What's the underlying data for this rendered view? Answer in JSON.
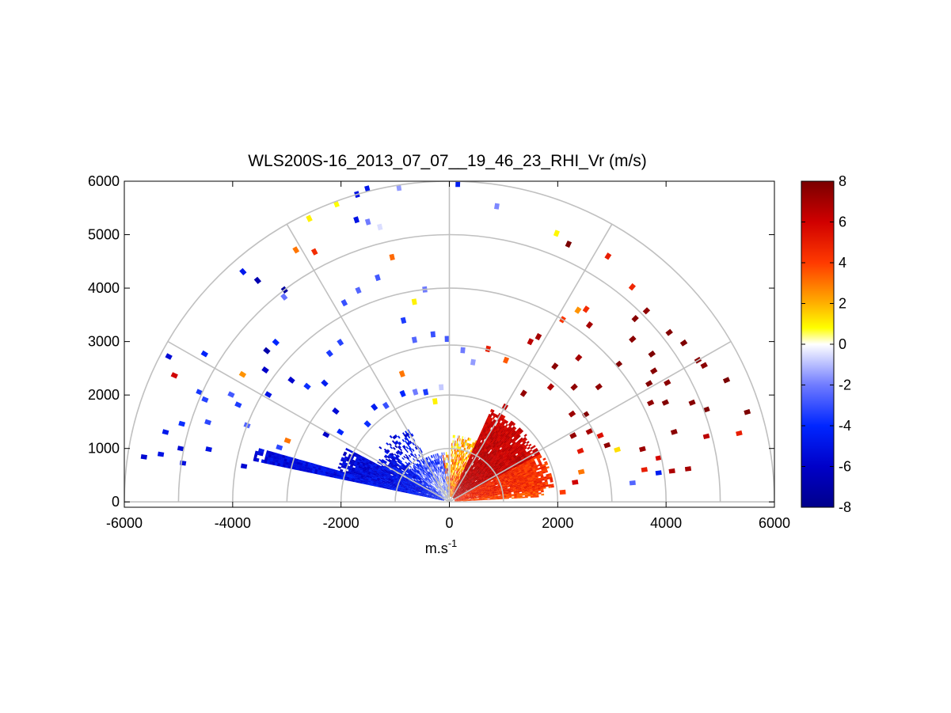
{
  "chart_data": {
    "type": "heatmap",
    "subtype": "polar-rhi-scan",
    "title": "WLS200S-16_2013_07_07__19_46_23_RHI_Vr (m/s)",
    "xlabel": "m.s",
    "xlabel_superscript": "-1",
    "ylabel": "",
    "xlim": [
      -6000,
      6000
    ],
    "ylim": [
      -100,
      6000
    ],
    "x_ticks": [
      -6000,
      -4000,
      -2000,
      0,
      2000,
      4000,
      6000
    ],
    "y_ticks": [
      0,
      1000,
      2000,
      3000,
      4000,
      5000,
      6000
    ],
    "polar_grid": {
      "range_rings": [
        1000,
        2000,
        3000,
        4000,
        5000,
        6000
      ],
      "spokes_deg": [
        0,
        30,
        60,
        90,
        120,
        150,
        180
      ],
      "color": "#c0c0c0"
    },
    "colorbar": {
      "min": -8,
      "max": 8,
      "ticks": [
        8,
        6,
        4,
        2,
        0,
        -2,
        -4,
        -6,
        -8
      ],
      "placement": "right",
      "colormap": [
        {
          "v": -8,
          "c": "#00008b"
        },
        {
          "v": -6,
          "c": "#0000c8"
        },
        {
          "v": -4,
          "c": "#0026ff"
        },
        {
          "v": -2,
          "c": "#6f7bff"
        },
        {
          "v": 0,
          "c": "#ffffff"
        },
        {
          "v": 0.8,
          "c": "#ffff00"
        },
        {
          "v": 2,
          "c": "#ffb000"
        },
        {
          "v": 4,
          "c": "#ff3a00"
        },
        {
          "v": 6,
          "c": "#d00000"
        },
        {
          "v": 8,
          "c": "#7a0000"
        }
      ]
    },
    "wedges": [
      {
        "name": "negative-low-elevation-region",
        "az0": 164,
        "az1": 168,
        "r0": 100,
        "r1": 3700,
        "v0": -4.5,
        "v1": -5.5,
        "jitter": 0.1,
        "density": 1.0
      },
      {
        "name": "negative-low-elevation-region",
        "az0": 152,
        "az1": 164,
        "r0": 100,
        "r1": 2150,
        "v0": -4.5,
        "v1": -5.8,
        "jitter": 0.12,
        "density": 0.97
      },
      {
        "name": "negative-low-elevation-region",
        "az0": 140,
        "az1": 152,
        "r0": 120,
        "r1": 1500,
        "v0": -4.0,
        "v1": -5.5,
        "jitter": 0.15,
        "density": 0.85
      },
      {
        "name": "negative-sparse-region",
        "az0": 118,
        "az1": 142,
        "r0": 700,
        "r1": 1650,
        "v0": -4.5,
        "v1": -6.0,
        "jitter": 0.2,
        "density": 0.38
      },
      {
        "name": "near-vertical-negative-region",
        "az0": 96,
        "az1": 140,
        "r0": 80,
        "r1": 900,
        "v0": -1.2,
        "v1": -3.0,
        "jitter": 0.3,
        "density": 0.9
      },
      {
        "name": "near-vertical-mixed-region",
        "az0": 90,
        "az1": 98,
        "r0": 80,
        "r1": 900,
        "v0": 0.5,
        "v1": 1.5,
        "jitter": 0.5,
        "density": 0.8
      },
      {
        "name": "positive-high-angle-region",
        "az0": 66,
        "az1": 88,
        "r0": 100,
        "r1": 1250,
        "v0": 3.5,
        "v1": 1.0,
        "jitter": 0.3,
        "density": 0.9
      },
      {
        "name": "positive-main-region",
        "az0": 28,
        "az1": 66,
        "r0": 100,
        "r1": 1900,
        "v0": 6.8,
        "v1": 6.0,
        "jitter": 0.08,
        "density": 0.98
      },
      {
        "name": "positive-low-elevation-region",
        "az0": 8,
        "az1": 28,
        "r0": 100,
        "r1": 1950,
        "v0": 5.0,
        "v1": 4.2,
        "jitter": 0.1,
        "density": 0.98
      },
      {
        "name": "positive-low-elevation-region",
        "az0": 3,
        "az1": 8,
        "r0": 100,
        "r1": 1750,
        "v0": 4.0,
        "v1": 3.6,
        "jitter": 0.1,
        "density": 0.95
      }
    ],
    "sparse_points": [
      {
        "az": 171.5,
        "r": 5700,
        "v": -5.6
      },
      {
        "az": 170.5,
        "r": 5400,
        "v": -5.0
      },
      {
        "az": 168.6,
        "r": 5060,
        "v": -5.5
      },
      {
        "az": 171.6,
        "r": 4970,
        "v": -5.2
      },
      {
        "az": 167.5,
        "r": 4550,
        "v": -5.0
      },
      {
        "az": 170,
        "r": 3850,
        "v": -5.6
      },
      {
        "az": 166,
        "r": 5400,
        "v": -4.7
      },
      {
        "az": 163.5,
        "r": 5150,
        "v": -3.8
      },
      {
        "az": 161.5,
        "r": 4700,
        "v": -3.2
      },
      {
        "az": 157,
        "r": 4900,
        "v": -3.3
      },
      {
        "az": 156,
        "r": 5050,
        "v": -3.6
      },
      {
        "az": 155,
        "r": 4300,
        "v": -3.5
      },
      {
        "az": 153.5,
        "r": 4500,
        "v": -2.8
      },
      {
        "az": 155,
        "r": 5600,
        "v": 6.0
      },
      {
        "az": 152.3,
        "r": 5850,
        "v": -5.5
      },
      {
        "az": 148.5,
        "r": 5300,
        "v": -4.2
      },
      {
        "az": 149,
        "r": 3900,
        "v": -5.0
      },
      {
        "az": 148,
        "r": 4500,
        "v": 2.5
      },
      {
        "az": 144,
        "r": 4200,
        "v": -6.0
      },
      {
        "az": 140,
        "r": 4400,
        "v": -7.0
      },
      {
        "az": 137,
        "r": 4380,
        "v": -4.0
      },
      {
        "az": 131.5,
        "r": 5750,
        "v": -4.7
      },
      {
        "az": 130.5,
        "r": 5450,
        "v": -6.8
      },
      {
        "az": 127.5,
        "r": 5000,
        "v": -7.3
      },
      {
        "az": 128.5,
        "r": 4900,
        "v": -2.2
      },
      {
        "az": 121,
        "r": 5500,
        "v": 3.0
      },
      {
        "az": 118,
        "r": 5300,
        "v": 4.5
      },
      {
        "az": 116,
        "r": 5900,
        "v": 1.0
      },
      {
        "az": 106.5,
        "r": 6000,
        "v": -5.0
      },
      {
        "az": 104.5,
        "r": 6050,
        "v": -4.8
      },
      {
        "az": 110.5,
        "r": 5950,
        "v": 0.8
      },
      {
        "az": 108,
        "r": 5550,
        "v": -5.0
      },
      {
        "az": 106,
        "r": 5450,
        "v": -2.0
      },
      {
        "az": 104,
        "r": 5300,
        "v": -0.5
      },
      {
        "az": 99,
        "r": 5950,
        "v": -1.5
      },
      {
        "az": 88.5,
        "r": 5950,
        "v": -4.5
      },
      {
        "az": 81,
        "r": 5600,
        "v": -1.8
      },
      {
        "az": 68.5,
        "r": 5400,
        "v": 0.9
      },
      {
        "az": 65.5,
        "r": 5300,
        "v": 8.0
      },
      {
        "az": 57.5,
        "r": 5450,
        "v": 5.0
      },
      {
        "az": 50,
        "r": 5250,
        "v": 4.7
      },
      {
        "az": 44.5,
        "r": 5100,
        "v": 7.5
      },
      {
        "az": 38,
        "r": 5150,
        "v": 7.8
      },
      {
        "az": 34.5,
        "r": 5250,
        "v": 7.9
      },
      {
        "az": 30,
        "r": 5300,
        "v": 7.7
      },
      {
        "az": 28.5,
        "r": 5350,
        "v": 7.6
      },
      {
        "az": 24,
        "r": 5600,
        "v": 8.0
      },
      {
        "az": 17,
        "r": 5750,
        "v": 7.9
      },
      {
        "az": 13.5,
        "r": 5500,
        "v": 5.0
      },
      {
        "az": 8,
        "r": 4450,
        "v": 7.0
      },
      {
        "az": 142,
        "r": 3700,
        "v": -5.8
      },
      {
        "az": 140.5,
        "r": 3400,
        "v": -3.8
      },
      {
        "az": 136,
        "r": 3200,
        "v": -4.5
      },
      {
        "az": 128.5,
        "r": 3550,
        "v": -3.5
      },
      {
        "az": 124,
        "r": 3600,
        "v": -3.3
      },
      {
        "az": 117.5,
        "r": 4200,
        "v": -3.0
      },
      {
        "az": 113,
        "r": 4300,
        "v": -2.5
      },
      {
        "az": 107.5,
        "r": 4400,
        "v": -2.8
      },
      {
        "az": 103,
        "r": 4700,
        "v": 3.2
      },
      {
        "az": 96.5,
        "r": 4000,
        "v": -2.0
      },
      {
        "az": 99.8,
        "r": 3800,
        "v": 1.0
      },
      {
        "az": 104,
        "r": 3500,
        "v": -3.5
      },
      {
        "az": 102,
        "r": 3100,
        "v": -2.5
      },
      {
        "az": 95.5,
        "r": 3150,
        "v": -3.0
      },
      {
        "az": 90.8,
        "r": 3050,
        "v": -2.8
      },
      {
        "az": 85,
        "r": 2850,
        "v": -2.0
      },
      {
        "az": 80.5,
        "r": 2650,
        "v": -1.5
      },
      {
        "az": 76,
        "r": 2950,
        "v": 5.0
      },
      {
        "az": 68.5,
        "r": 2850,
        "v": 3.5
      },
      {
        "az": 62,
        "r": 3500,
        "v": 7.0
      },
      {
        "az": 63.5,
        "r": 3350,
        "v": 6.5
      },
      {
        "az": 58.5,
        "r": 4000,
        "v": 4.2
      },
      {
        "az": 56.5,
        "r": 4300,
        "v": 2.5
      },
      {
        "az": 55,
        "r": 4400,
        "v": 4.5
      },
      {
        "az": 52,
        "r": 4200,
        "v": 7.0
      },
      {
        "az": 48.5,
        "r": 3600,
        "v": 7.0
      },
      {
        "az": 45,
        "r": 4850,
        "v": 7.7
      },
      {
        "az": 42,
        "r": 4550,
        "v": 7.6
      },
      {
        "az": 39.5,
        "r": 4050,
        "v": 7.8
      },
      {
        "az": 38,
        "r": 3500,
        "v": 7.5
      },
      {
        "az": 36.5,
        "r": 4650,
        "v": 7.9
      },
      {
        "az": 33,
        "r": 4500,
        "v": 7.7
      },
      {
        "az": 31,
        "r": 4300,
        "v": 7.8
      },
      {
        "az": 29,
        "r": 4600,
        "v": 7.6
      },
      {
        "az": 26.5,
        "r": 4150,
        "v": 7.5
      },
      {
        "az": 25,
        "r": 4400,
        "v": 7.8
      },
      {
        "az": 22.5,
        "r": 4850,
        "v": 7.7
      },
      {
        "az": 20,
        "r": 5050,
        "v": 7.9
      },
      {
        "az": 17.5,
        "r": 4350,
        "v": 7.6
      },
      {
        "az": 14.5,
        "r": 4900,
        "v": 6.5
      },
      {
        "az": 15.5,
        "r": 3700,
        "v": 7.2
      },
      {
        "az": 12,
        "r": 3950,
        "v": 5.8
      },
      {
        "az": 9.5,
        "r": 3650,
        "v": 5.0
      },
      {
        "az": 8,
        "r": 3900,
        "v": -4.5
      },
      {
        "az": 6,
        "r": 3400,
        "v": -2.5
      },
      {
        "az": 8,
        "r": 4150,
        "v": 6.8
      },
      {
        "az": 17.5,
        "r": 3250,
        "v": 1.3
      },
      {
        "az": 20,
        "r": 3100,
        "v": 7.5
      },
      {
        "az": 24,
        "r": 3050,
        "v": 5.5
      },
      {
        "az": 27,
        "r": 2900,
        "v": 7.0
      },
      {
        "az": 28.5,
        "r": 2600,
        "v": 7.4
      },
      {
        "az": 33,
        "r": 3000,
        "v": 7.8
      },
      {
        "az": 36,
        "r": 2800,
        "v": 7.2
      },
      {
        "az": 43,
        "r": 3150,
        "v": 7.5
      },
      {
        "az": 49,
        "r": 2850,
        "v": 6.8
      },
      {
        "az": 52.5,
        "r": 3200,
        "v": 7.6
      },
      {
        "az": 56,
        "r": 2450,
        "v": 7.4
      },
      {
        "az": 60,
        "r": 2050,
        "v": 6.5
      },
      {
        "az": 64,
        "r": 1700,
        "v": 5.5
      },
      {
        "az": 21.5,
        "r": 2600,
        "v": 5.2
      },
      {
        "az": 13,
        "r": 2500,
        "v": 3.0
      },
      {
        "az": 9,
        "r": 2350,
        "v": 6.0
      },
      {
        "az": 5,
        "r": 2100,
        "v": 4.0
      },
      {
        "az": 151,
        "r": 2600,
        "v": -6.0
      },
      {
        "az": 147,
        "r": 2400,
        "v": -4.0
      },
      {
        "az": 141,
        "r": 2700,
        "v": -5.5
      },
      {
        "az": 136,
        "r": 2100,
        "v": -3.8
      },
      {
        "az": 128,
        "r": 2250,
        "v": -4.5
      },
      {
        "az": 123,
        "r": 2150,
        "v": -3.0
      },
      {
        "az": 113,
        "r": 2200,
        "v": -4.0
      },
      {
        "az": 110,
        "r": 2550,
        "v": 3.0
      },
      {
        "az": 107,
        "r": 2150,
        "v": -2.0
      },
      {
        "az": 102,
        "r": 2100,
        "v": -3.5
      },
      {
        "az": 98,
        "r": 1900,
        "v": 1.0
      },
      {
        "az": 94,
        "r": 2150,
        "v": -0.8
      },
      {
        "az": 159,
        "r": 4000,
        "v": -2.5
      },
      {
        "az": 162,
        "r": 3300,
        "v": -3.2
      },
      {
        "az": 159,
        "r": 3200,
        "v": 3.0
      }
    ]
  }
}
